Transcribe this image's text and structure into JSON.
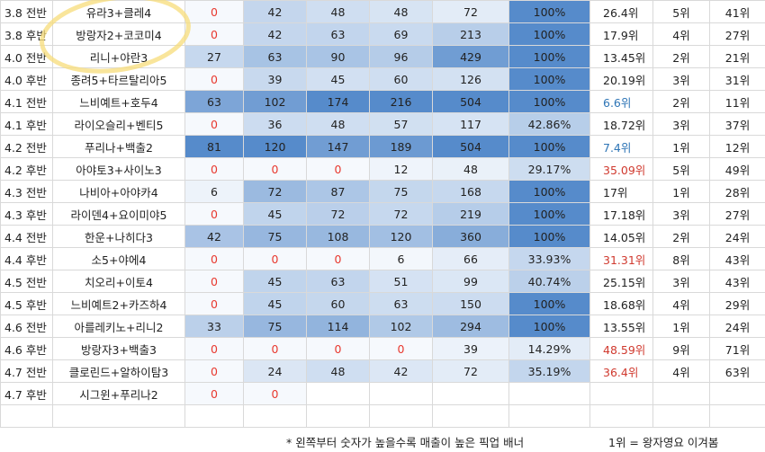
{
  "table": {
    "rows": [
      {
        "cells": [
          "3.8 전반",
          "유라3+클레4",
          "0",
          "42",
          "48",
          "48",
          "72",
          "100%",
          "26.4위",
          "5위",
          "41위"
        ]
      },
      {
        "cells": [
          "3.8 후반",
          "방랑자2+코코미4",
          "0",
          "42",
          "63",
          "69",
          "213",
          "100%",
          "17.9위",
          "4위",
          "27위"
        ]
      },
      {
        "cells": [
          "4.0 전반",
          "리니+야란3",
          "27",
          "63",
          "90",
          "96",
          "429",
          "100%",
          "13.45위",
          "2위",
          "21위"
        ]
      },
      {
        "cells": [
          "4.0 후반",
          "종려5+타르탈리아5",
          "0",
          "39",
          "45",
          "60",
          "126",
          "100%",
          "20.19위",
          "3위",
          "31위"
        ]
      },
      {
        "cells": [
          "4.1 전반",
          "느비예트+호두4",
          "63",
          "102",
          "174",
          "216",
          "504",
          "100%",
          "6.6위",
          "2위",
          "11위"
        ],
        "rank_color": "#2e75b6"
      },
      {
        "cells": [
          "4.1 후반",
          "라이오슬리+벤티5",
          "0",
          "36",
          "48",
          "57",
          "117",
          "42.86%",
          "18.72위",
          "3위",
          "37위"
        ]
      },
      {
        "cells": [
          "4.2 전반",
          "푸리나+백출2",
          "81",
          "120",
          "147",
          "189",
          "504",
          "100%",
          "7.4위",
          "1위",
          "12위"
        ],
        "rank_color": "#2e75b6"
      },
      {
        "cells": [
          "4.2 후반",
          "아야토3+사이노3",
          "0",
          "0",
          "0",
          "12",
          "48",
          "29.17%",
          "35.09위",
          "5위",
          "49위"
        ],
        "rank_color": "#d03a2f"
      },
      {
        "cells": [
          "4.3 전반",
          "나비아+아야카4",
          "6",
          "72",
          "87",
          "75",
          "168",
          "100%",
          "17위",
          "1위",
          "28위"
        ]
      },
      {
        "cells": [
          "4.3 후반",
          "라이덴4+요이미야5",
          "0",
          "45",
          "72",
          "72",
          "219",
          "100%",
          "17.18위",
          "3위",
          "27위"
        ]
      },
      {
        "cells": [
          "4.4 전반",
          "한운+나히다3",
          "42",
          "75",
          "108",
          "120",
          "360",
          "100%",
          "14.05위",
          "2위",
          "24위"
        ]
      },
      {
        "cells": [
          "4.4 후반",
          "소5+야에4",
          "0",
          "0",
          "0",
          "6",
          "66",
          "33.93%",
          "31.31위",
          "8위",
          "43위"
        ],
        "rank_color": "#d03a2f"
      },
      {
        "cells": [
          "4.5 전반",
          "치오리+이토4",
          "0",
          "45",
          "63",
          "51",
          "99",
          "40.74%",
          "25.15위",
          "3위",
          "43위"
        ]
      },
      {
        "cells": [
          "4.5 후반",
          "느비예트2+카즈하4",
          "0",
          "45",
          "60",
          "63",
          "150",
          "100%",
          "18.68위",
          "4위",
          "29위"
        ]
      },
      {
        "cells": [
          "4.6 전반",
          "아를레키노+리니2",
          "33",
          "75",
          "114",
          "102",
          "294",
          "100%",
          "13.55위",
          "1위",
          "24위"
        ]
      },
      {
        "cells": [
          "4.6 후반",
          "방랑자3+백출3",
          "0",
          "0",
          "0",
          "0",
          "39",
          "14.29%",
          "48.59위",
          "9위",
          "71위"
        ],
        "rank_color": "#d03a2f"
      },
      {
        "cells": [
          "4.7 전반",
          "클로린드+알하이탐3",
          "0",
          "24",
          "48",
          "42",
          "72",
          "35.19%",
          "36.4위",
          "4위",
          "63위"
        ],
        "rank_color": "#d03a2f"
      },
      {
        "cells": [
          "4.7 후반",
          "시그윈+푸리나2",
          "0",
          "0"
        ]
      }
    ],
    "zero_color": "#e8392f",
    "footer": {
      "note": "* 왼쪽부터 숫자가 높을수록 매출이 높은 픽업 배너",
      "legend": "1위 = 왕자영요 이겨봄"
    }
  }
}
